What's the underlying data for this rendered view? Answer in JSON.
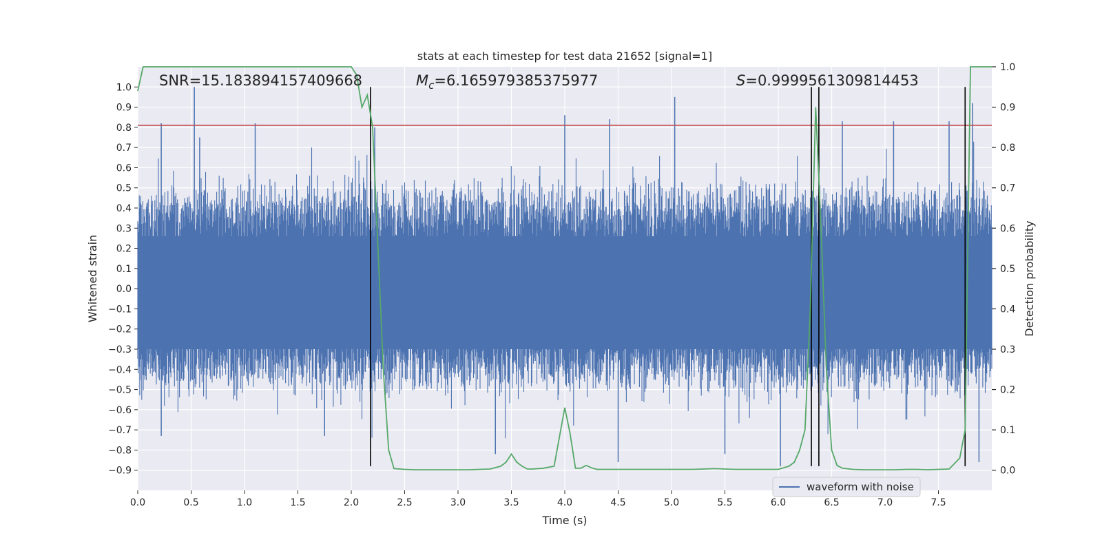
{
  "chart_data": {
    "type": "line",
    "title": "stats at each timestep for test data 21652 [signal=1]",
    "xlabel": "Time (s)",
    "ylabel_left": "Whitened strain",
    "ylabel_right": "Detection probability",
    "xlim": [
      0,
      8
    ],
    "ylim_left": [
      -1.0,
      1.1
    ],
    "ylim_right": [
      -0.05,
      1.0
    ],
    "x_ticks": [
      0.0,
      0.5,
      1.0,
      1.5,
      2.0,
      2.5,
      3.0,
      3.5,
      4.0,
      4.5,
      5.0,
      5.5,
      6.0,
      6.5,
      7.0,
      7.5
    ],
    "x_tick_labels": [
      "0.0",
      "0.5",
      "1.0",
      "1.5",
      "2.0",
      "2.5",
      "3.0",
      "3.5",
      "4.0",
      "4.5",
      "5.0",
      "5.5",
      "6.0",
      "6.5",
      "7.0",
      "7.5"
    ],
    "y_left_ticks": [
      -0.9,
      -0.8,
      -0.7,
      -0.6,
      -0.5,
      -0.4,
      -0.3,
      -0.2,
      -0.1,
      0.0,
      0.1,
      0.2,
      0.3,
      0.4,
      0.5,
      0.6,
      0.7,
      0.8,
      0.9,
      1.0
    ],
    "y_left_tick_labels": [
      "−0.9",
      "−0.8",
      "−0.7",
      "−0.6",
      "−0.5",
      "−0.4",
      "−0.3",
      "−0.2",
      "−0.1",
      "0.0",
      "0.1",
      "0.2",
      "0.3",
      "0.4",
      "0.5",
      "0.6",
      "0.7",
      "0.8",
      "0.9",
      "1.0"
    ],
    "y_right_ticks": [
      0.0,
      0.1,
      0.2,
      0.3,
      0.4,
      0.5,
      0.6,
      0.7,
      0.8,
      0.9,
      1.0
    ],
    "y_right_tick_labels": [
      "0.0",
      "0.1",
      "0.2",
      "0.3",
      "0.4",
      "0.5",
      "0.6",
      "0.7",
      "0.8",
      "0.9",
      "1.0"
    ],
    "annotations": {
      "snr": "SNR=15.183894157409668",
      "mc_symbol": "M",
      "mc_sub": "c",
      "mc_value": "=6.165979385375977",
      "s_symbol": "S",
      "s_value": "=0.9999561309814453"
    },
    "threshold_line": {
      "axis": "left",
      "y": 0.81,
      "color": "#c44e52"
    },
    "vertical_lines": [
      2.18,
      6.31,
      6.38,
      7.75
    ],
    "waveform": {
      "name": "waveform with noise",
      "color": "#4c72b0",
      "description_envelope_upper": 0.45,
      "description_envelope_lower": -0.45,
      "sample_rate_hz": 2048,
      "peaks": [
        {
          "x": 0.22,
          "y": 0.82
        },
        {
          "x": 0.53,
          "y": 1.0
        },
        {
          "x": 0.58,
          "y": 0.75
        },
        {
          "x": 1.1,
          "y": 0.82
        },
        {
          "x": 2.22,
          "y": 0.8
        },
        {
          "x": 4.0,
          "y": 0.86
        },
        {
          "x": 4.42,
          "y": 0.84
        },
        {
          "x": 5.03,
          "y": 0.95
        },
        {
          "x": 6.6,
          "y": 0.83
        },
        {
          "x": 7.08,
          "y": 0.83
        },
        {
          "x": 7.6,
          "y": 0.83
        },
        {
          "x": 7.82,
          "y": 0.92
        },
        {
          "x": 3.35,
          "y": -0.82
        },
        {
          "x": 4.5,
          "y": -0.86
        },
        {
          "x": 6.02,
          "y": -0.88
        },
        {
          "x": 7.75,
          "y": -0.88
        },
        {
          "x": 0.22,
          "y": -0.73
        },
        {
          "x": 1.75,
          "y": -0.73
        },
        {
          "x": 5.5,
          "y": -0.82
        },
        {
          "x": 7.88,
          "y": -0.86
        }
      ]
    },
    "probability": {
      "name": "detection probability",
      "color": "#55a868",
      "x": [
        0.0,
        0.05,
        0.1,
        0.2,
        0.3,
        0.4,
        0.5,
        0.6,
        0.7,
        0.8,
        0.9,
        1.0,
        1.1,
        1.2,
        1.3,
        1.4,
        1.5,
        1.6,
        1.7,
        1.8,
        1.9,
        2.0,
        2.05,
        2.1,
        2.15,
        2.2,
        2.25,
        2.3,
        2.35,
        2.4,
        2.5,
        2.6,
        2.7,
        2.8,
        2.9,
        3.0,
        3.1,
        3.2,
        3.3,
        3.4,
        3.45,
        3.5,
        3.55,
        3.6,
        3.65,
        3.7,
        3.8,
        3.9,
        4.0,
        4.05,
        4.1,
        4.15,
        4.2,
        4.25,
        4.3,
        4.4,
        4.5,
        4.6,
        4.7,
        4.8,
        4.9,
        5.0,
        5.1,
        5.2,
        5.3,
        5.4,
        5.5,
        5.6,
        5.7,
        5.8,
        5.9,
        6.0,
        6.1,
        6.15,
        6.2,
        6.25,
        6.3,
        6.35,
        6.4,
        6.45,
        6.5,
        6.55,
        6.6,
        6.7,
        6.8,
        6.9,
        7.0,
        7.1,
        7.2,
        7.3,
        7.4,
        7.5,
        7.6,
        7.7,
        7.75,
        7.8,
        7.85,
        7.9,
        8.0
      ],
      "values": [
        0.94,
        1.0,
        1.0,
        1.0,
        1.0,
        1.0,
        1.0,
        1.0,
        1.0,
        1.0,
        1.0,
        1.0,
        1.0,
        1.0,
        1.0,
        1.0,
        1.0,
        1.0,
        1.0,
        1.0,
        1.0,
        1.0,
        0.98,
        0.9,
        0.93,
        0.85,
        0.55,
        0.25,
        0.05,
        0.004,
        0.002,
        0.001,
        0.001,
        0.001,
        0.001,
        0.001,
        0.001,
        0.002,
        0.003,
        0.01,
        0.02,
        0.04,
        0.02,
        0.01,
        0.003,
        0.003,
        0.005,
        0.01,
        0.155,
        0.09,
        0.005,
        0.005,
        0.012,
        0.006,
        0.002,
        0.002,
        0.002,
        0.002,
        0.002,
        0.002,
        0.002,
        0.002,
        0.002,
        0.002,
        0.003,
        0.004,
        0.003,
        0.002,
        0.002,
        0.002,
        0.002,
        0.002,
        0.01,
        0.02,
        0.05,
        0.1,
        0.4,
        0.9,
        0.6,
        0.25,
        0.05,
        0.012,
        0.005,
        0.002,
        0.001,
        0.001,
        0.001,
        0.001,
        0.002,
        0.002,
        0.001,
        0.002,
        0.003,
        0.03,
        0.1,
        1.0,
        1.0,
        1.0,
        1.0
      ]
    },
    "legend": {
      "placement": "lower-right",
      "entries": [
        "waveform with noise"
      ]
    },
    "grid": true,
    "background": "#eaeaf2"
  }
}
